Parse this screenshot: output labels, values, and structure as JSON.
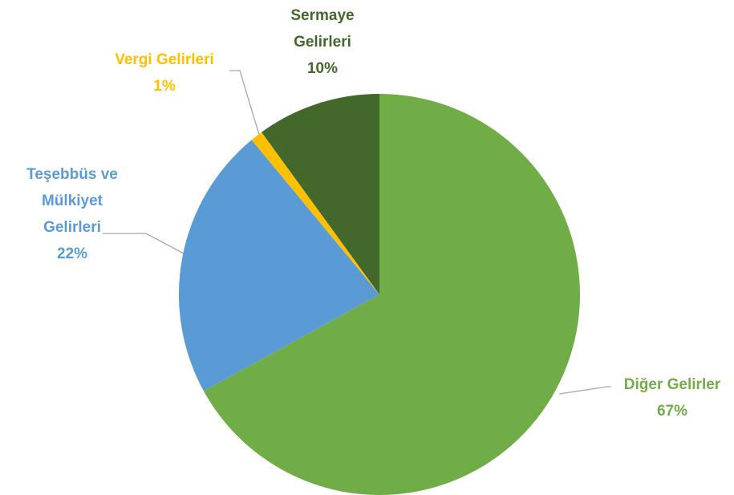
{
  "chart_data": {
    "type": "pie",
    "categories": [
      "Diğer Gelirler",
      "Teşebbüs ve Mülkiyet Gelirleri",
      "Vergi Gelirleri",
      "Sermaye Gelirleri"
    ],
    "values": [
      67,
      22,
      1,
      10
    ],
    "value_labels": [
      "67%",
      "22%",
      "1%",
      "10%"
    ],
    "colors": [
      "#70ad47",
      "#5b9bd5",
      "#ffc000",
      "#43682b"
    ]
  }
}
